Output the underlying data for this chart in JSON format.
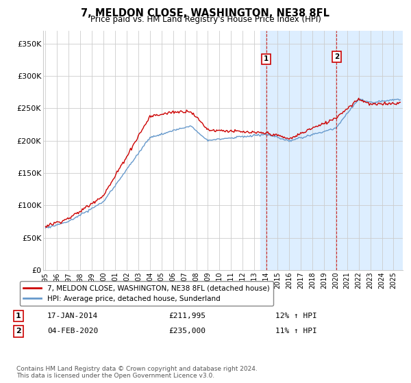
{
  "title": "7, MELDON CLOSE, WASHINGTON, NE38 8FL",
  "subtitle": "Price paid vs. HM Land Registry's House Price Index (HPI)",
  "ylabel_ticks": [
    "£0",
    "£50K",
    "£100K",
    "£150K",
    "£200K",
    "£250K",
    "£300K",
    "£350K"
  ],
  "ytick_values": [
    0,
    50000,
    100000,
    150000,
    200000,
    250000,
    300000,
    350000
  ],
  "ylim": [
    0,
    370000
  ],
  "xlim_start": 1994.8,
  "xlim_end": 2025.8,
  "sale1_year": 2014.04,
  "sale1_price": 211995,
  "sale2_year": 2020.09,
  "sale2_price": 235000,
  "shade_start": 2013.5,
  "shade_end": 2026.0,
  "legend1": "7, MELDON CLOSE, WASHINGTON, NE38 8FL (detached house)",
  "legend2": "HPI: Average price, detached house, Sunderland",
  "annot1_label": "1",
  "annot1_date": "17-JAN-2014",
  "annot1_price": "£211,995",
  "annot1_hpi": "12% ↑ HPI",
  "annot2_label": "2",
  "annot2_date": "04-FEB-2020",
  "annot2_price": "£235,000",
  "annot2_hpi": "11% ↑ HPI",
  "footnote": "Contains HM Land Registry data © Crown copyright and database right 2024.\nThis data is licensed under the Open Government Licence v3.0.",
  "red_color": "#cc0000",
  "blue_color": "#6699cc",
  "shade_color": "#ddeeff",
  "grid_color": "#cccccc"
}
